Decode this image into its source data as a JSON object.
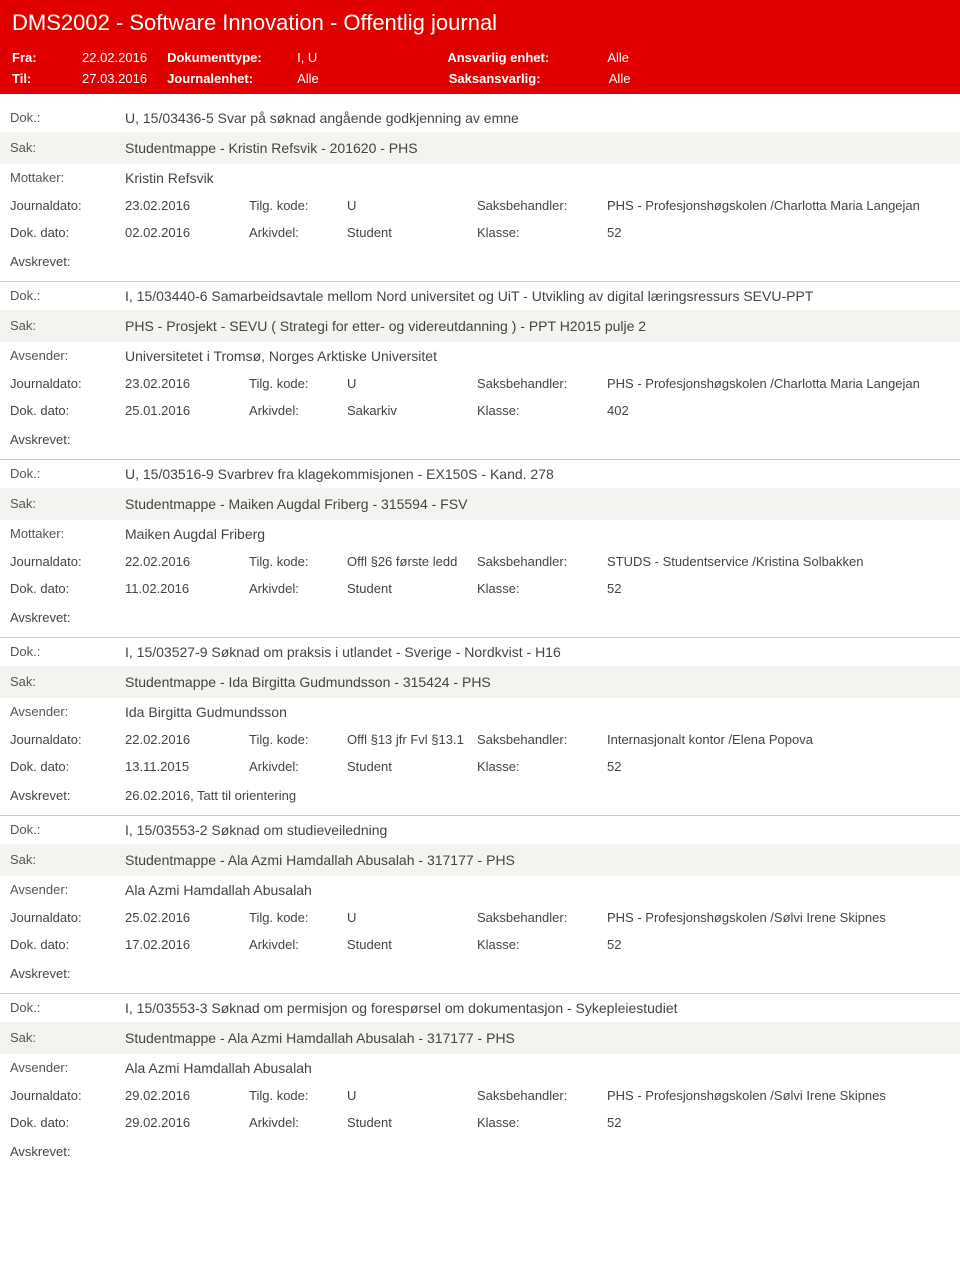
{
  "header": {
    "title": "DMS2002 - Software Innovation - Offentlig journal",
    "fra_label": "Fra:",
    "fra_val": "22.02.2016",
    "til_label": "Til:",
    "til_val": "27.03.2016",
    "doktype_label": "Dokumenttype:",
    "doktype_val": "I, U",
    "journalenhet_label": "Journalenhet:",
    "journalenhet_val": "Alle",
    "ansvarlig_label": "Ansvarlig enhet:",
    "ansvarlig_val": "Alle",
    "saksansvarlig_label": "Saksansvarlig:",
    "saksansvarlig_val": "Alle"
  },
  "labels": {
    "dok": "Dok.:",
    "sak": "Sak:",
    "mottaker": "Mottaker:",
    "avsender": "Avsender:",
    "journaldato": "Journaldato:",
    "tilgkode": "Tilg. kode:",
    "saksbehandler": "Saksbehandler:",
    "dokdato": "Dok. dato:",
    "arkivdel": "Arkivdel:",
    "klasse": "Klasse:",
    "avskrevet": "Avskrevet:"
  },
  "records": [
    {
      "dok": "U, 15/03436-5 Svar på søknad angående godkjenning av emne",
      "sak": "Studentmappe - Kristin Refsvik - 201620 - PHS",
      "party_label": "Mottaker:",
      "party": "Kristin Refsvik",
      "journaldato": "23.02.2016",
      "tilgkode": "U",
      "saksbehandler": "PHS - Profesjonshøgskolen /Charlotta Maria Langejan",
      "dokdato": "02.02.2016",
      "arkivdel": "Student",
      "klasse": "52",
      "avskrevet": ""
    },
    {
      "dok": "I, 15/03440-6 Samarbeidsavtale mellom Nord universitet og UiT - Utvikling av digital læringsressurs SEVU-PPT",
      "sak": "PHS - Prosjekt - SEVU ( Strategi for etter- og videreutdanning ) -     PPT H2015 pulje 2",
      "party_label": "Avsender:",
      "party": "Universitetet i Tromsø, Norges Arktiske Universitet",
      "journaldato": "23.02.2016",
      "tilgkode": "U",
      "saksbehandler": "PHS - Profesjonshøgskolen /Charlotta Maria Langejan",
      "dokdato": "25.01.2016",
      "arkivdel": "Sakarkiv",
      "klasse": "402",
      "avskrevet": ""
    },
    {
      "dok": "U, 15/03516-9 Svarbrev fra klagekommisjonen - EX150S - Kand. 278",
      "sak": "Studentmappe - Maiken Augdal Friberg - 315594 - FSV",
      "party_label": "Mottaker:",
      "party": "Maiken Augdal Friberg",
      "journaldato": "22.02.2016",
      "tilgkode": "Offl §26 første ledd",
      "saksbehandler": "STUDS - Studentservice /Kristina Solbakken",
      "dokdato": "11.02.2016",
      "arkivdel": "Student",
      "klasse": "52",
      "avskrevet": ""
    },
    {
      "dok": "I, 15/03527-9 Søknad om praksis i utlandet - Sverige - Nordkvist - H16",
      "sak": "Studentmappe - Ida Birgitta Gudmundsson - 315424 - PHS",
      "party_label": "Avsender:",
      "party": "Ida Birgitta Gudmundsson",
      "journaldato": "22.02.2016",
      "tilgkode": "Offl §13 jfr Fvl §13.1",
      "saksbehandler": "Internasjonalt kontor /Elena Popova",
      "dokdato": "13.11.2015",
      "arkivdel": "Student",
      "klasse": "52",
      "avskrevet": "26.02.2016, Tatt til orientering"
    },
    {
      "dok": "I, 15/03553-2 Søknad om studieveiledning",
      "sak": "Studentmappe - Ala Azmi Hamdallah Abusalah - 317177 - PHS",
      "party_label": "Avsender:",
      "party": "Ala Azmi Hamdallah Abusalah",
      "journaldato": "25.02.2016",
      "tilgkode": "U",
      "saksbehandler": "PHS - Profesjonshøgskolen /Sølvi Irene Skipnes",
      "dokdato": "17.02.2016",
      "arkivdel": "Student",
      "klasse": "52",
      "avskrevet": ""
    },
    {
      "dok": "I, 15/03553-3 Søknad om permisjon og forespørsel om dokumentasjon - Sykepleiestudiet",
      "sak": "Studentmappe - Ala Azmi Hamdallah Abusalah - 317177 - PHS",
      "party_label": "Avsender:",
      "party": "Ala Azmi Hamdallah Abusalah",
      "journaldato": "29.02.2016",
      "tilgkode": "U",
      "saksbehandler": "PHS - Profesjonshøgskolen /Sølvi Irene Skipnes",
      "dokdato": "29.02.2016",
      "arkivdel": "Student",
      "klasse": "52",
      "avskrevet": ""
    }
  ]
}
